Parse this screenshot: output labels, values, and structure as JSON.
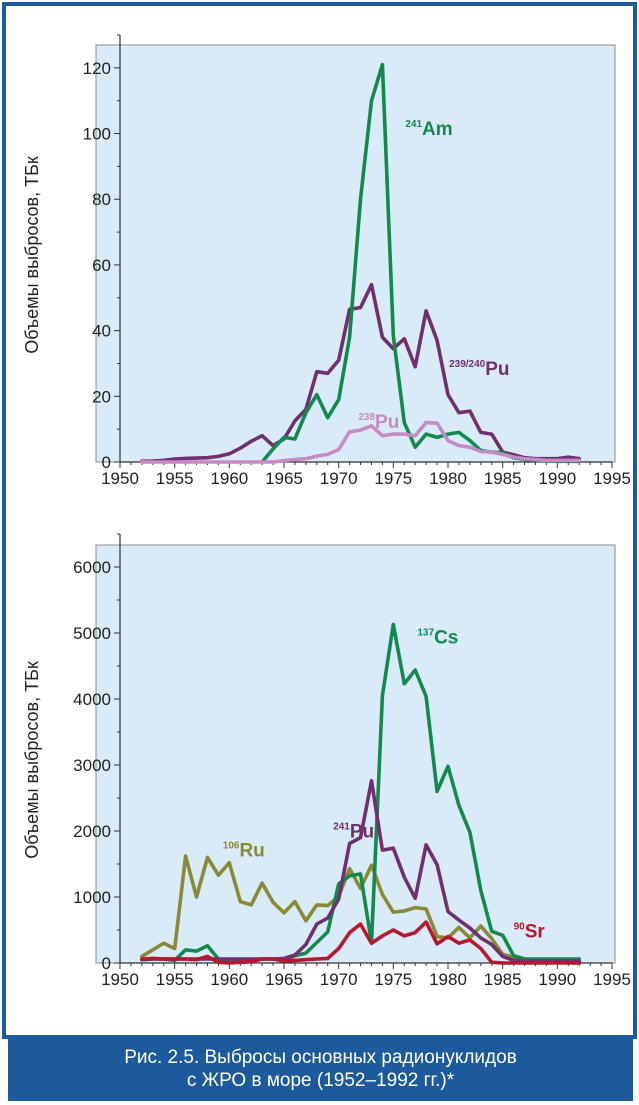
{
  "figure": {
    "caption_line1": "Рис. 2.5. Выбросы основных радионуклидов",
    "caption_line2": "с ЖРО в море (1952–1992 гг.)*"
  },
  "colors": {
    "panel_bg": "#d9ebf9",
    "frame_border": "#1d5a9b",
    "caption_bg": "#1d5a9b",
    "axis": "#333333"
  },
  "chart_data": [
    {
      "type": "line",
      "ylabel": "Объемы выбросов, ТБк",
      "xlabel": "",
      "xlim": [
        1950,
        1995
      ],
      "ylim": [
        0,
        130
      ],
      "xticks": [
        1950,
        1955,
        1960,
        1965,
        1970,
        1975,
        1980,
        1985,
        1990,
        1995
      ],
      "yticks": [
        0,
        20,
        40,
        60,
        80,
        100,
        120
      ],
      "grid": false,
      "series": [
        {
          "name": "239/240Pu",
          "sup": "239/240",
          "base": "Pu",
          "color": "#6f2f70",
          "label_x": 1980.1,
          "label_y": 26.5,
          "x": [
            1952,
            1953,
            1954,
            1955,
            1956,
            1957,
            1958,
            1959,
            1960,
            1961,
            1962,
            1963,
            1964,
            1965,
            1966,
            1967,
            1968,
            1969,
            1970,
            1971,
            1972,
            1973,
            1974,
            1975,
            1976,
            1977,
            1978,
            1979,
            1980,
            1981,
            1982,
            1983,
            1984,
            1985,
            1986,
            1987,
            1988,
            1989,
            1990,
            1991,
            1992
          ],
          "y": [
            0.2,
            0.3,
            0.5,
            0.9,
            1.1,
            1.2,
            1.3,
            1.7,
            2.5,
            4.2,
            6.3,
            8,
            5,
            7,
            12.5,
            16,
            27.5,
            27,
            31,
            46.5,
            47,
            54,
            38,
            34.5,
            37.5,
            29,
            46,
            37,
            20.5,
            15,
            15.5,
            9,
            8.5,
            3,
            2.2,
            1.3,
            1,
            1,
            1,
            1.5,
            1
          ]
        },
        {
          "name": "241Am",
          "sup": "241",
          "base": "Am",
          "color": "#128a4e",
          "label_x": 1976.1,
          "label_y": 99.5,
          "x": [
            1963,
            1964,
            1965,
            1966,
            1967,
            1968,
            1969,
            1970,
            1971,
            1972,
            1973,
            1974,
            1975,
            1976,
            1977,
            1978,
            1979,
            1980,
            1981,
            1982,
            1983,
            1984,
            1985,
            1986,
            1987,
            1988,
            1989,
            1990,
            1991,
            1992
          ],
          "y": [
            0,
            4,
            7.5,
            7,
            15,
            20.5,
            13.5,
            19,
            38,
            80,
            110,
            121,
            38.5,
            12,
            4.5,
            8.5,
            7.5,
            8.5,
            9,
            6.5,
            3.5,
            3,
            2.8,
            1.3,
            0.8,
            0.5,
            0.3,
            0.2,
            0.2,
            0.2
          ]
        },
        {
          "name": "238Pu",
          "sup": "238",
          "base": "Pu",
          "color": "#c68ac4",
          "label_x": 1971.8,
          "label_y": 10.3,
          "x": [
            1952,
            1956,
            1960,
            1964,
            1965,
            1966,
            1967,
            1968,
            1969,
            1970,
            1971,
            1972,
            1973,
            1974,
            1975,
            1976,
            1977,
            1978,
            1979,
            1980,
            1981,
            1982,
            1983,
            1984,
            1985,
            1986,
            1987,
            1988,
            1989,
            1990,
            1991,
            1992
          ],
          "y": [
            0,
            0,
            0,
            0,
            0.4,
            0.8,
            1,
            1.8,
            2.3,
            3.8,
            9.2,
            9.7,
            11,
            8,
            8.5,
            8.5,
            8,
            12,
            11.8,
            6.5,
            5,
            4.5,
            3.2,
            3,
            2.3,
            1.5,
            1,
            0.8,
            0.5,
            0.5,
            0.5,
            0.5
          ]
        }
      ]
    },
    {
      "type": "line",
      "ylabel": "Объемы выбросов, ТБк",
      "xlabel": "",
      "xlim": [
        1950,
        1995
      ],
      "ylim": [
        0,
        6500
      ],
      "xticks": [
        1950,
        1955,
        1960,
        1965,
        1970,
        1975,
        1980,
        1985,
        1990,
        1995
      ],
      "yticks": [
        0,
        1000,
        2000,
        3000,
        4000,
        5000,
        6000
      ],
      "grid": false,
      "series": [
        {
          "name": "106Ru",
          "sup": "106",
          "base": "Ru",
          "color": "#8a8a35",
          "label_x": 1959.4,
          "label_y": 1610,
          "x": [
            1952,
            1953,
            1954,
            1955,
            1956,
            1957,
            1958,
            1959,
            1960,
            1961,
            1962,
            1963,
            1964,
            1965,
            1966,
            1967,
            1968,
            1969,
            1970,
            1971,
            1972,
            1973,
            1974,
            1975,
            1976,
            1977,
            1978,
            1979,
            1980,
            1981,
            1982,
            1983,
            1984,
            1985,
            1986,
            1987,
            1988,
            1989,
            1990,
            1991,
            1992
          ],
          "y": [
            100,
            200,
            300,
            220,
            1620,
            1000,
            1600,
            1330,
            1520,
            930,
            880,
            1210,
            920,
            760,
            930,
            640,
            880,
            870,
            1010,
            1430,
            1130,
            1480,
            1040,
            770,
            790,
            840,
            820,
            400,
            380,
            540,
            380,
            560,
            370,
            130,
            90,
            60,
            50,
            40,
            30,
            30,
            30
          ]
        },
        {
          "name": "137Cs",
          "sup": "137",
          "base": "Cs",
          "color": "#128a4e",
          "label_x": 1977.2,
          "label_y": 4840,
          "x": [
            1952,
            1953,
            1954,
            1955,
            1956,
            1957,
            1958,
            1959,
            1960,
            1961,
            1962,
            1963,
            1964,
            1965,
            1966,
            1967,
            1968,
            1969,
            1970,
            1971,
            1972,
            1973,
            1974,
            1975,
            1976,
            1977,
            1978,
            1979,
            1980,
            1981,
            1982,
            1983,
            1984,
            1985,
            1986,
            1987,
            1988,
            1989,
            1990,
            1991,
            1992
          ],
          "y": [
            50,
            60,
            60,
            40,
            200,
            180,
            260,
            60,
            40,
            40,
            50,
            60,
            60,
            40,
            110,
            150,
            310,
            470,
            1200,
            1320,
            1350,
            310,
            4050,
            5130,
            4230,
            4440,
            4040,
            2600,
            2980,
            2390,
            1980,
            1100,
            480,
            420,
            110,
            60,
            60,
            60,
            60,
            60,
            60
          ]
        },
        {
          "name": "241Pu",
          "sup": "241",
          "base": "Pu",
          "color": "#6f2f70",
          "label_x": 1969.5,
          "label_y": 1900,
          "x": [
            1952,
            1953,
            1954,
            1955,
            1956,
            1957,
            1958,
            1959,
            1960,
            1961,
            1962,
            1963,
            1964,
            1965,
            1966,
            1967,
            1968,
            1969,
            1970,
            1971,
            1972,
            1973,
            1974,
            1975,
            1976,
            1977,
            1978,
            1979,
            1980,
            1981,
            1982,
            1983,
            1984,
            1985,
            1986,
            1987,
            1988,
            1989,
            1990,
            1991,
            1992
          ],
          "y": [
            50,
            60,
            60,
            60,
            60,
            60,
            60,
            60,
            60,
            60,
            60,
            60,
            60,
            70,
            120,
            280,
            590,
            680,
            970,
            1810,
            1900,
            2760,
            1710,
            1740,
            1300,
            980,
            1790,
            1490,
            780,
            650,
            530,
            380,
            280,
            100,
            40,
            30,
            30,
            30,
            30,
            30,
            30
          ]
        },
        {
          "name": "90Sr",
          "sup": "90",
          "base": "Sr",
          "color": "#b5182f",
          "label_x": 1986.0,
          "label_y": 390,
          "x": [
            1952,
            1953,
            1954,
            1955,
            1956,
            1957,
            1958,
            1959,
            1960,
            1961,
            1962,
            1963,
            1964,
            1965,
            1966,
            1967,
            1968,
            1969,
            1970,
            1971,
            1972,
            1973,
            1974,
            1975,
            1976,
            1977,
            1978,
            1979,
            1980,
            1981,
            1982,
            1983,
            1984,
            1985,
            1986,
            1987,
            1988,
            1989,
            1990,
            1991,
            1992
          ],
          "y": [
            60,
            70,
            60,
            60,
            60,
            50,
            100,
            10,
            0,
            10,
            20,
            60,
            60,
            30,
            40,
            50,
            60,
            70,
            220,
            460,
            590,
            300,
            410,
            500,
            410,
            460,
            620,
            290,
            400,
            300,
            350,
            220,
            10,
            0,
            0,
            0,
            0,
            0,
            0,
            0,
            0
          ]
        }
      ]
    }
  ]
}
